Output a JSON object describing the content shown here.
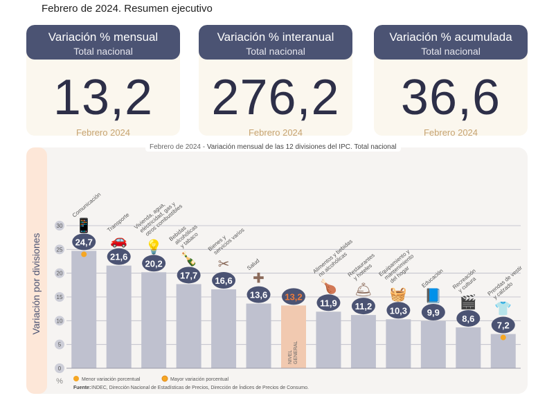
{
  "page_title": "Febrero de 2024. Resumen ejecutivo",
  "cards": [
    {
      "title": "Variación % mensual",
      "subtitle": "Total nacional",
      "value": "13,2",
      "period": "Febrero 2024"
    },
    {
      "title": "Variación % interanual",
      "subtitle": "Total nacional",
      "value": "276,2",
      "period": "Febrero 2024"
    },
    {
      "title": "Variación % acumulada",
      "subtitle": "Total nacional",
      "value": "36,6",
      "period": "Febrero 2024"
    }
  ],
  "chart_subtitle_prefix": "Febrero de 2024 - ",
  "chart_subtitle_main": "Variación mensual de las 12 divisiones del IPC. Total nacional",
  "legend_min": "Menor variación porcentual",
  "legend_max": "Mayor variación porcentual",
  "source_label": "Fuente:",
  "source_text": "INDEC, Dirección Nacional de Estadísticas de Precios, Dirección de Índices de Precios de Consumo.",
  "colors": {
    "bar": "#bfc1cf",
    "general_bar": "#f1c9b0",
    "bubble": "#4b5373",
    "highlight": "#f5a623",
    "accent": "#ee7b3b"
  },
  "chart_data": {
    "type": "bar",
    "ylabel": "Variación por divisiones",
    "yunit": "%",
    "ylim": [
      0,
      30
    ],
    "yticks": [
      0,
      5,
      10,
      15,
      20,
      25,
      30
    ],
    "grid": true,
    "categories": [
      "Comunicación",
      "Transporte",
      "Vivienda, agua, electricidad, gas y otros combustibles",
      "Bebidas alcohólicas y tabaco",
      "Bienes y servicios varios",
      "Salud",
      "NIVEL GENERAL",
      "Alimentos y bebidas no alcohólicas",
      "Restaurantes y hoteles",
      "Equipamiento y mantenimiento del hogar",
      "Educación",
      "Recreación y cultura",
      "Prendas de vestir y calzado"
    ],
    "values": [
      24.7,
      21.6,
      20.2,
      17.7,
      16.6,
      13.6,
      13.2,
      11.9,
      11.2,
      10.3,
      9.9,
      8.6,
      7.2
    ],
    "value_labels": [
      "24,7",
      "21,6",
      "20,2",
      "17,7",
      "16,6",
      "13,6",
      "13,2",
      "11,9",
      "11,2",
      "10,3",
      "9,9",
      "8,6",
      "7,2"
    ],
    "category_lines": [
      [
        "Comunicación"
      ],
      [
        "Transporte"
      ],
      [
        "Vivienda, agua,",
        "electricidad, gas y",
        "otros combustibles"
      ],
      [
        "Bebidas",
        "alcohólicas",
        "y tabaco"
      ],
      [
        "Bienes y",
        "servicios varios"
      ],
      [
        "Salud"
      ],
      [
        "NIVEL",
        "GENERAL"
      ],
      [
        "Alimentos y bebidas",
        "no alcohólicas"
      ],
      [
        "Restaurantes",
        "y hoteles"
      ],
      [
        "Equipamiento y",
        "mantenimiento",
        "del hogar"
      ],
      [
        "Educación"
      ],
      [
        "Recreación",
        "y cultura"
      ],
      [
        "Prendas de vestir",
        "y calzado"
      ]
    ],
    "general_index": 6,
    "max_index": 0,
    "min_index": 12,
    "icons": [
      "phone-icon",
      "car-icon",
      "lightbulb-icon",
      "bottle-icon",
      "scissors-icon",
      "medical-icon",
      "",
      "food-icon",
      "hotel-icon",
      "appliance-icon",
      "book-icon",
      "cinema-icon",
      "shirt-icon"
    ]
  }
}
